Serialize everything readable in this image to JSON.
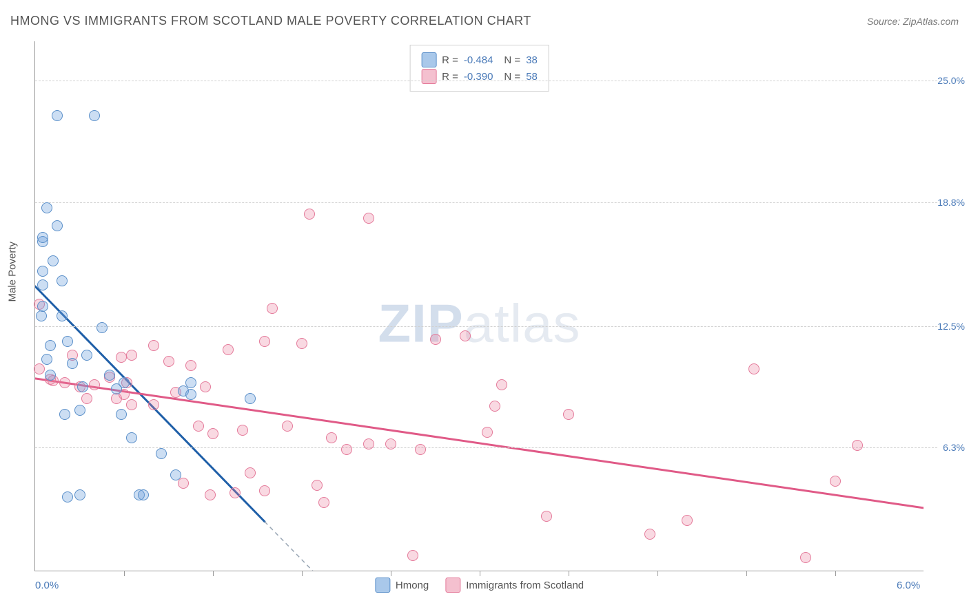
{
  "title": "HMONG VS IMMIGRANTS FROM SCOTLAND MALE POVERTY CORRELATION CHART",
  "source": "Source: ZipAtlas.com",
  "axis": {
    "y_title": "Male Poverty",
    "x_min": 0.0,
    "x_max": 6.0,
    "y_min": 0.0,
    "y_max": 27.0,
    "x_labels": [
      {
        "v": 0.0,
        "t": "0.0%"
      },
      {
        "v": 6.0,
        "t": "6.0%"
      }
    ],
    "x_ticks": [
      0.6,
      1.2,
      1.8,
      2.4,
      3.0,
      3.6,
      4.2,
      4.8,
      5.4
    ],
    "y_grid": [
      {
        "v": 6.3,
        "t": "6.3%"
      },
      {
        "v": 12.5,
        "t": "12.5%"
      },
      {
        "v": 18.8,
        "t": "18.8%"
      },
      {
        "v": 25.0,
        "t": "25.0%"
      }
    ]
  },
  "series": {
    "hmong": {
      "label": "Hmong",
      "color_fill": "rgba(108,160,220,0.35)",
      "color_stroke": "#5a8fc9",
      "swatch_fill": "#a9c8ea",
      "swatch_stroke": "#5a8fc9",
      "r_value": "-0.484",
      "n_value": "38",
      "trend": {
        "color": "#1f5fa8",
        "width": 3,
        "x1": 0.0,
        "y1": 14.5,
        "x2": 1.55,
        "y2": 2.5,
        "dash_to_x": 2.0
      },
      "marker_radius": 8,
      "points": [
        [
          0.04,
          13.0
        ],
        [
          0.05,
          13.5
        ],
        [
          0.05,
          14.6
        ],
        [
          0.05,
          15.3
        ],
        [
          0.05,
          16.8
        ],
        [
          0.05,
          17.0
        ],
        [
          0.08,
          18.5
        ],
        [
          0.08,
          10.8
        ],
        [
          0.1,
          10.0
        ],
        [
          0.1,
          11.5
        ],
        [
          0.12,
          15.8
        ],
        [
          0.15,
          17.6
        ],
        [
          0.15,
          23.2
        ],
        [
          0.18,
          13.0
        ],
        [
          0.18,
          14.8
        ],
        [
          0.2,
          8.0
        ],
        [
          0.22,
          3.8
        ],
        [
          0.22,
          11.7
        ],
        [
          0.25,
          10.6
        ],
        [
          0.3,
          3.9
        ],
        [
          0.3,
          8.2
        ],
        [
          0.32,
          9.4
        ],
        [
          0.35,
          11.0
        ],
        [
          0.4,
          23.2
        ],
        [
          0.45,
          12.4
        ],
        [
          0.5,
          10.0
        ],
        [
          0.55,
          9.3
        ],
        [
          0.58,
          8.0
        ],
        [
          0.6,
          9.6
        ],
        [
          0.65,
          6.8
        ],
        [
          0.7,
          3.9
        ],
        [
          0.73,
          3.9
        ],
        [
          0.85,
          6.0
        ],
        [
          0.95,
          4.9
        ],
        [
          1.0,
          9.2
        ],
        [
          1.05,
          9.0
        ],
        [
          1.05,
          9.6
        ],
        [
          1.45,
          8.8
        ]
      ]
    },
    "scotland": {
      "label": "Immigrants from Scotland",
      "color_fill": "rgba(235,130,160,0.30)",
      "color_stroke": "#e47a9a",
      "swatch_fill": "#f4c0cf",
      "swatch_stroke": "#e47a9a",
      "r_value": "-0.390",
      "n_value": "58",
      "trend": {
        "color": "#e05a87",
        "width": 3,
        "x1": 0.0,
        "y1": 9.8,
        "x2": 6.0,
        "y2": 3.2
      },
      "marker_radius": 8,
      "points": [
        [
          0.03,
          13.6
        ],
        [
          0.03,
          10.3
        ],
        [
          0.1,
          9.8
        ],
        [
          0.12,
          9.7
        ],
        [
          0.2,
          9.6
        ],
        [
          0.25,
          11.0
        ],
        [
          0.3,
          9.4
        ],
        [
          0.35,
          8.8
        ],
        [
          0.4,
          9.5
        ],
        [
          0.5,
          9.9
        ],
        [
          0.55,
          8.8
        ],
        [
          0.58,
          10.9
        ],
        [
          0.6,
          9.0
        ],
        [
          0.62,
          9.6
        ],
        [
          0.65,
          8.5
        ],
        [
          0.65,
          11.0
        ],
        [
          0.8,
          8.5
        ],
        [
          0.8,
          11.5
        ],
        [
          0.9,
          10.7
        ],
        [
          0.95,
          9.1
        ],
        [
          1.0,
          4.5
        ],
        [
          1.05,
          10.5
        ],
        [
          1.1,
          7.4
        ],
        [
          1.15,
          9.4
        ],
        [
          1.18,
          3.9
        ],
        [
          1.2,
          7.0
        ],
        [
          1.3,
          11.3
        ],
        [
          1.35,
          4.0
        ],
        [
          1.4,
          7.2
        ],
        [
          1.45,
          5.0
        ],
        [
          1.55,
          4.1
        ],
        [
          1.55,
          11.7
        ],
        [
          1.6,
          13.4
        ],
        [
          1.7,
          7.4
        ],
        [
          1.8,
          11.6
        ],
        [
          1.85,
          18.2
        ],
        [
          1.9,
          4.4
        ],
        [
          1.95,
          3.5
        ],
        [
          2.0,
          6.8
        ],
        [
          2.1,
          6.2
        ],
        [
          2.25,
          18.0
        ],
        [
          2.25,
          6.5
        ],
        [
          2.4,
          6.5
        ],
        [
          2.55,
          0.8
        ],
        [
          2.6,
          6.2
        ],
        [
          2.7,
          11.8
        ],
        [
          2.9,
          12.0
        ],
        [
          3.05,
          7.1
        ],
        [
          3.1,
          8.4
        ],
        [
          3.15,
          9.5
        ],
        [
          3.45,
          2.8
        ],
        [
          3.6,
          8.0
        ],
        [
          4.15,
          1.9
        ],
        [
          4.4,
          2.6
        ],
        [
          4.85,
          10.3
        ],
        [
          5.2,
          0.7
        ],
        [
          5.4,
          4.6
        ],
        [
          5.55,
          6.4
        ]
      ]
    }
  },
  "watermark": {
    "part1": "ZIP",
    "part2": "atlas"
  },
  "legend_top_spacer": "   "
}
